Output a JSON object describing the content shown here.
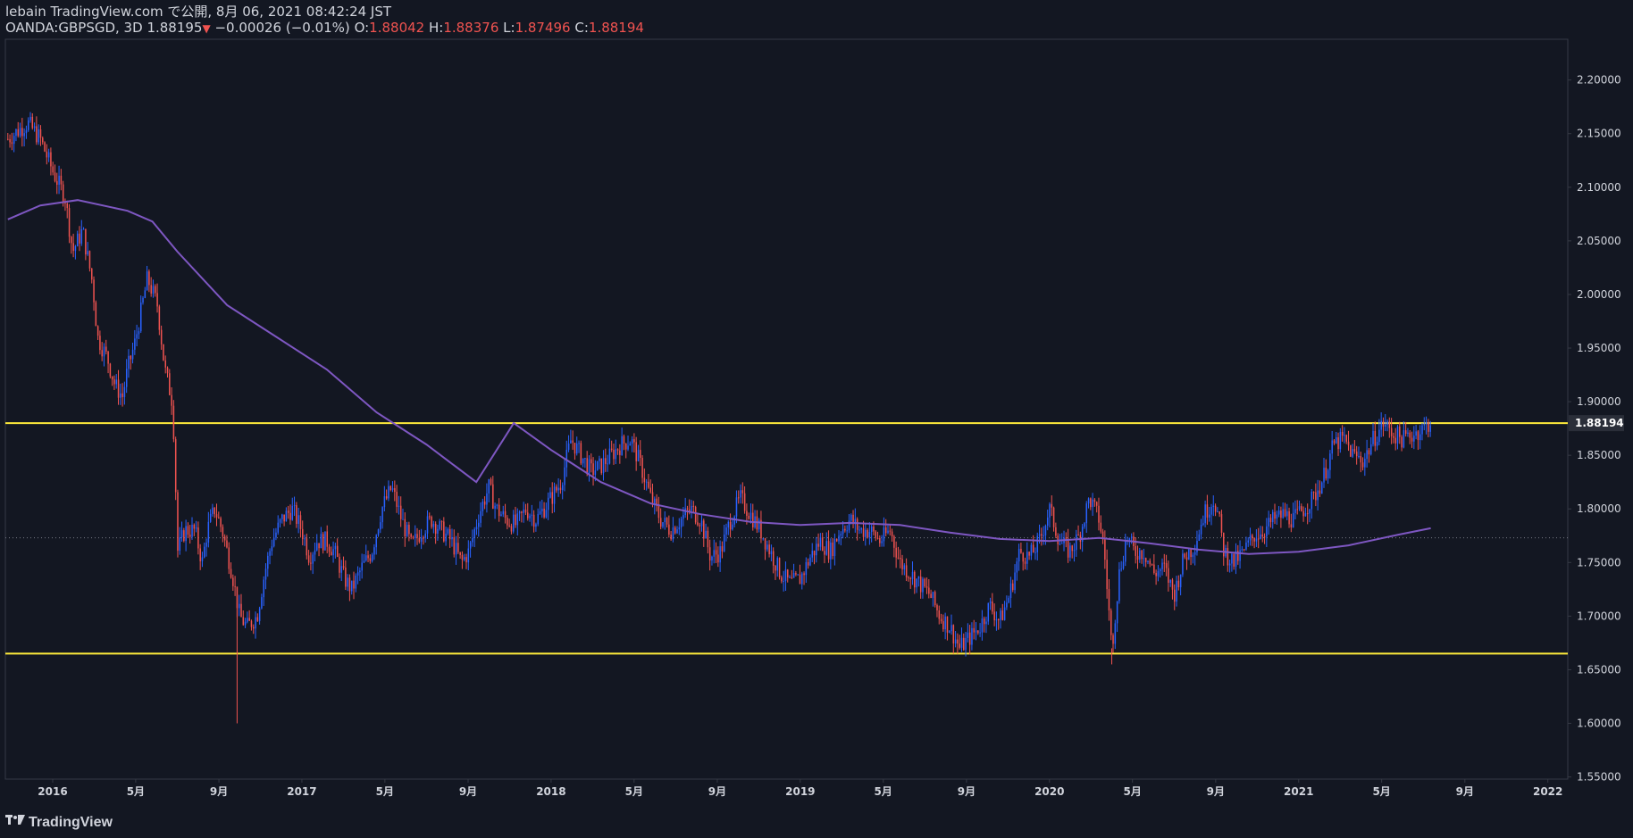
{
  "header": {
    "publisher": "lebain TradingView.com で公開, 8月 06, 2021 08:42:24 JST",
    "symbol": "OANDA:GBPSGD, 3D",
    "last": "1.88195",
    "change_arrow": "▼",
    "change": "−0.00026 (−0.01%)",
    "o_label": "O:",
    "o_value": "1.88042",
    "h_label": "H:",
    "h_value": "1.88376",
    "l_label": "L:",
    "l_value": "1.87496",
    "c_label": "C:",
    "c_value": "1.88194"
  },
  "footer": {
    "brand": "TradingView",
    "logo_icon": "tradingview-logo-icon"
  },
  "colors": {
    "background": "#131722",
    "up": "#2962ff",
    "down": "#f05350",
    "ma": "#7e57c2",
    "hline": "#ffeb3b",
    "text": "#d1d4dc",
    "grid_border": "#363a45"
  },
  "chart_data": {
    "type": "candlestick",
    "y_axis_ticks": [
      "2.20000",
      "2.15000",
      "2.10000",
      "2.05000",
      "2.00000",
      "1.95000",
      "1.90000",
      "1.85000",
      "1.80000",
      "1.75000",
      "1.70000",
      "1.65000",
      "1.60000",
      "1.55000"
    ],
    "ylim": [
      1.548,
      2.238
    ],
    "last_price_label": "1.88194",
    "x_axis_ticks": [
      {
        "label": "2016",
        "t": 2016.0
      },
      {
        "label": "5月",
        "t": 2016.333
      },
      {
        "label": "9月",
        "t": 2016.667
      },
      {
        "label": "2017",
        "t": 2017.0
      },
      {
        "label": "5月",
        "t": 2017.333
      },
      {
        "label": "9月",
        "t": 2017.667
      },
      {
        "label": "2018",
        "t": 2018.0
      },
      {
        "label": "5月",
        "t": 2018.333
      },
      {
        "label": "9月",
        "t": 2018.667
      },
      {
        "label": "2019",
        "t": 2019.0
      },
      {
        "label": "5月",
        "t": 2019.333
      },
      {
        "label": "9月",
        "t": 2019.667
      },
      {
        "label": "2020",
        "t": 2020.0
      },
      {
        "label": "5月",
        "t": 2020.333
      },
      {
        "label": "9月",
        "t": 2020.667
      },
      {
        "label": "2021",
        "t": 2021.0
      },
      {
        "label": "5月",
        "t": 2021.333
      },
      {
        "label": "9月",
        "t": 2021.667
      },
      {
        "label": "2022",
        "t": 2022.0
      }
    ],
    "xlim": [
      2015.81,
      2022.08
    ],
    "horizontal_lines": [
      1.88,
      1.665
    ],
    "dotted_line": 1.773,
    "close_path": [
      [
        2015.82,
        2.145
      ],
      [
        2015.9,
        2.16
      ],
      [
        2015.95,
        2.145
      ],
      [
        2016.0,
        2.115
      ],
      [
        2016.05,
        2.09
      ],
      [
        2016.08,
        2.04
      ],
      [
        2016.12,
        2.06
      ],
      [
        2016.16,
        2.01
      ],
      [
        2016.18,
        1.96
      ],
      [
        2016.22,
        1.94
      ],
      [
        2016.25,
        1.915
      ],
      [
        2016.28,
        1.905
      ],
      [
        2016.3,
        1.93
      ],
      [
        2016.33,
        1.955
      ],
      [
        2016.38,
        2.015
      ],
      [
        2016.42,
        1.99
      ],
      [
        2016.45,
        1.93
      ],
      [
        2016.48,
        1.9
      ],
      [
        2016.49,
        1.85
      ],
      [
        2016.5,
        1.76
      ],
      [
        2016.53,
        1.78
      ],
      [
        2016.57,
        1.78
      ],
      [
        2016.6,
        1.75
      ],
      [
        2016.62,
        1.78
      ],
      [
        2016.65,
        1.8
      ],
      [
        2016.68,
        1.78
      ],
      [
        2016.72,
        1.74
      ],
      [
        2016.75,
        1.7
      ],
      [
        2016.78,
        1.69
      ],
      [
        2016.82,
        1.7
      ],
      [
        2016.85,
        1.74
      ],
      [
        2016.88,
        1.77
      ],
      [
        2016.92,
        1.79
      ],
      [
        2016.96,
        1.8
      ],
      [
        2017.0,
        1.78
      ],
      [
        2017.03,
        1.755
      ],
      [
        2017.06,
        1.77
      ],
      [
        2017.1,
        1.77
      ],
      [
        2017.13,
        1.76
      ],
      [
        2017.17,
        1.735
      ],
      [
        2017.2,
        1.725
      ],
      [
        2017.24,
        1.745
      ],
      [
        2017.28,
        1.76
      ],
      [
        2017.32,
        1.8
      ],
      [
        2017.36,
        1.82
      ],
      [
        2017.4,
        1.79
      ],
      [
        2017.44,
        1.765
      ],
      [
        2017.48,
        1.78
      ],
      [
        2017.52,
        1.79
      ],
      [
        2017.56,
        1.78
      ],
      [
        2017.6,
        1.77
      ],
      [
        2017.64,
        1.75
      ],
      [
        2017.67,
        1.76
      ],
      [
        2017.71,
        1.795
      ],
      [
        2017.75,
        1.82
      ],
      [
        2017.78,
        1.8
      ],
      [
        2017.82,
        1.79
      ],
      [
        2017.86,
        1.785
      ],
      [
        2017.9,
        1.8
      ],
      [
        2017.94,
        1.79
      ],
      [
        2017.97,
        1.8
      ],
      [
        2018.0,
        1.81
      ],
      [
        2018.04,
        1.825
      ],
      [
        2018.08,
        1.865
      ],
      [
        2018.12,
        1.85
      ],
      [
        2018.16,
        1.835
      ],
      [
        2018.2,
        1.84
      ],
      [
        2018.24,
        1.85
      ],
      [
        2018.28,
        1.86
      ],
      [
        2018.32,
        1.865
      ],
      [
        2018.36,
        1.84
      ],
      [
        2018.4,
        1.81
      ],
      [
        2018.44,
        1.79
      ],
      [
        2018.48,
        1.78
      ],
      [
        2018.52,
        1.79
      ],
      [
        2018.56,
        1.8
      ],
      [
        2018.6,
        1.79
      ],
      [
        2018.64,
        1.755
      ],
      [
        2018.68,
        1.76
      ],
      [
        2018.72,
        1.79
      ],
      [
        2018.76,
        1.81
      ],
      [
        2018.8,
        1.795
      ],
      [
        2018.84,
        1.78
      ],
      [
        2018.88,
        1.76
      ],
      [
        2018.92,
        1.74
      ],
      [
        2018.96,
        1.73
      ],
      [
        2019.0,
        1.735
      ],
      [
        2019.04,
        1.755
      ],
      [
        2019.08,
        1.77
      ],
      [
        2019.12,
        1.76
      ],
      [
        2019.16,
        1.78
      ],
      [
        2019.2,
        1.79
      ],
      [
        2019.24,
        1.78
      ],
      [
        2019.28,
        1.78
      ],
      [
        2019.32,
        1.77
      ],
      [
        2019.36,
        1.78
      ],
      [
        2019.4,
        1.75
      ],
      [
        2019.44,
        1.74
      ],
      [
        2019.48,
        1.73
      ],
      [
        2019.52,
        1.72
      ],
      [
        2019.56,
        1.7
      ],
      [
        2019.6,
        1.69
      ],
      [
        2019.64,
        1.67
      ],
      [
        2019.68,
        1.68
      ],
      [
        2019.72,
        1.69
      ],
      [
        2019.76,
        1.71
      ],
      [
        2019.8,
        1.695
      ],
      [
        2019.84,
        1.72
      ],
      [
        2019.88,
        1.76
      ],
      [
        2019.92,
        1.755
      ],
      [
        2019.96,
        1.77
      ],
      [
        2020.0,
        1.8
      ],
      [
        2020.04,
        1.77
      ],
      [
        2020.08,
        1.76
      ],
      [
        2020.12,
        1.775
      ],
      [
        2020.16,
        1.81
      ],
      [
        2020.2,
        1.79
      ],
      [
        2020.22,
        1.76
      ],
      [
        2020.24,
        1.7
      ],
      [
        2020.25,
        1.67
      ],
      [
        2020.28,
        1.74
      ],
      [
        2020.31,
        1.775
      ],
      [
        2020.34,
        1.76
      ],
      [
        2020.38,
        1.76
      ],
      [
        2020.42,
        1.74
      ],
      [
        2020.46,
        1.745
      ],
      [
        2020.5,
        1.72
      ],
      [
        2020.54,
        1.755
      ],
      [
        2020.58,
        1.765
      ],
      [
        2020.62,
        1.795
      ],
      [
        2020.66,
        1.81
      ],
      [
        2020.68,
        1.79
      ],
      [
        2020.7,
        1.76
      ],
      [
        2020.74,
        1.75
      ],
      [
        2020.78,
        1.76
      ],
      [
        2020.82,
        1.775
      ],
      [
        2020.86,
        1.78
      ],
      [
        2020.9,
        1.79
      ],
      [
        2020.94,
        1.795
      ],
      [
        2020.98,
        1.79
      ],
      [
        2021.02,
        1.8
      ],
      [
        2021.06,
        1.81
      ],
      [
        2021.1,
        1.83
      ],
      [
        2021.14,
        1.86
      ],
      [
        2021.18,
        1.865
      ],
      [
        2021.22,
        1.85
      ],
      [
        2021.26,
        1.845
      ],
      [
        2021.3,
        1.865
      ],
      [
        2021.34,
        1.88
      ],
      [
        2021.38,
        1.87
      ],
      [
        2021.42,
        1.865
      ],
      [
        2021.46,
        1.87
      ],
      [
        2021.5,
        1.875
      ],
      [
        2021.53,
        1.882
      ]
    ],
    "ma_path": [
      [
        2015.82,
        2.07
      ],
      [
        2015.95,
        2.083
      ],
      [
        2016.1,
        2.088
      ],
      [
        2016.3,
        2.078
      ],
      [
        2016.4,
        2.068
      ],
      [
        2016.5,
        2.04
      ],
      [
        2016.7,
        1.99
      ],
      [
        2016.9,
        1.96
      ],
      [
        2017.1,
        1.93
      ],
      [
        2017.3,
        1.89
      ],
      [
        2017.5,
        1.86
      ],
      [
        2017.7,
        1.825
      ],
      [
        2017.85,
        1.88
      ],
      [
        2018.0,
        1.855
      ],
      [
        2018.2,
        1.825
      ],
      [
        2018.4,
        1.805
      ],
      [
        2018.6,
        1.795
      ],
      [
        2018.8,
        1.788
      ],
      [
        2019.0,
        1.785
      ],
      [
        2019.2,
        1.787
      ],
      [
        2019.4,
        1.785
      ],
      [
        2019.6,
        1.778
      ],
      [
        2019.8,
        1.772
      ],
      [
        2020.0,
        1.77
      ],
      [
        2020.2,
        1.773
      ],
      [
        2020.4,
        1.768
      ],
      [
        2020.6,
        1.762
      ],
      [
        2020.8,
        1.758
      ],
      [
        2021.0,
        1.76
      ],
      [
        2021.2,
        1.766
      ],
      [
        2021.4,
        1.776
      ],
      [
        2021.53,
        1.782
      ]
    ]
  }
}
